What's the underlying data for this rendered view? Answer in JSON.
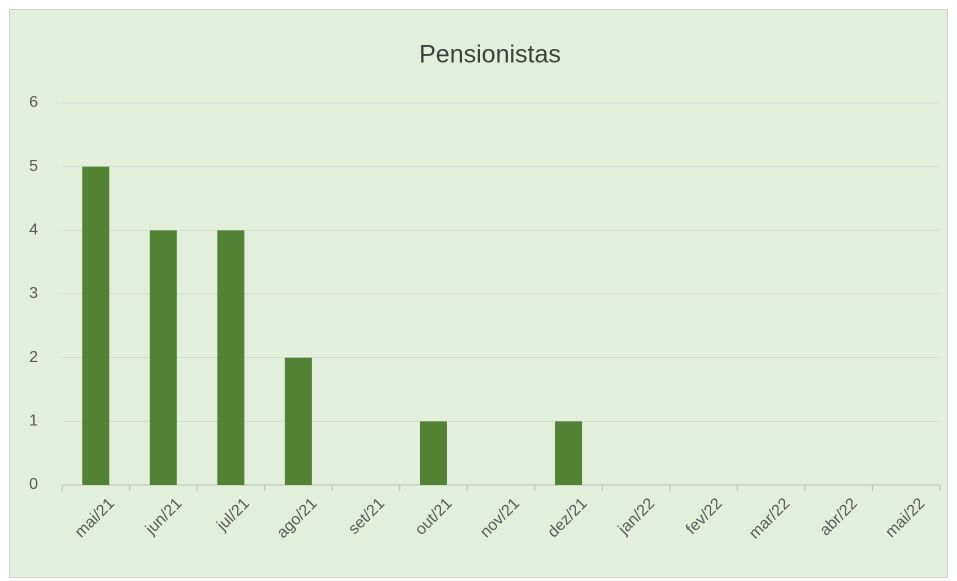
{
  "chart_data": {
    "type": "bar",
    "title": "Pensionistas",
    "categories": [
      "mai/21",
      "jun/21",
      "jul/21",
      "ago/21",
      "set/21",
      "out/21",
      "nov/21",
      "dez/21",
      "jan/22",
      "fev/22",
      "mar/22",
      "abr/22",
      "mai/22"
    ],
    "values": [
      5,
      4,
      4,
      2,
      0,
      1,
      0,
      1,
      0,
      0,
      0,
      0,
      0
    ],
    "color": "#548235",
    "ylim": [
      0,
      6
    ],
    "yticks": [
      0,
      1,
      2,
      3,
      4,
      5,
      6
    ],
    "grid": true
  }
}
